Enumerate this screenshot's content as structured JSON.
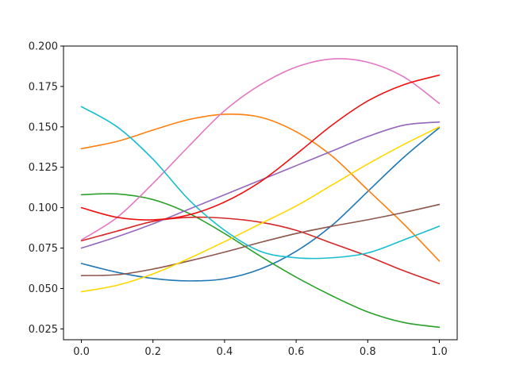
{
  "chart_data": {
    "type": "line",
    "title": "",
    "xlabel": "",
    "ylabel": "",
    "xlim": [
      -0.05,
      1.05
    ],
    "ylim": [
      0.0183,
      0.2
    ],
    "grid": false,
    "legend": "none",
    "x_ticks": [
      0.0,
      0.2,
      0.4,
      0.6,
      0.8,
      1.0
    ],
    "x_tick_labels": [
      "0.0",
      "0.2",
      "0.4",
      "0.6",
      "0.8",
      "1.0"
    ],
    "y_ticks": [
      0.025,
      0.05,
      0.075,
      0.1,
      0.125,
      0.15,
      0.175,
      0.2
    ],
    "y_tick_labels": [
      "0.025",
      "0.050",
      "0.075",
      "0.100",
      "0.125",
      "0.150",
      "0.175",
      "0.200"
    ],
    "x": [
      0.0,
      0.1,
      0.2,
      0.3,
      0.4,
      0.5,
      0.6,
      0.7,
      0.8,
      0.9,
      1.0
    ],
    "series": [
      {
        "color": "#1f77b4",
        "values": [
          0.0655,
          0.06,
          0.0562,
          0.0547,
          0.056,
          0.062,
          0.073,
          0.089,
          0.11,
          0.131,
          0.1495
        ]
      },
      {
        "color": "#ff7f0e",
        "values": [
          0.1365,
          0.141,
          0.148,
          0.1545,
          0.1578,
          0.156,
          0.147,
          0.132,
          0.111,
          0.09,
          0.067
        ]
      },
      {
        "color": "#2ca02c",
        "values": [
          0.108,
          0.1085,
          0.105,
          0.0965,
          0.084,
          0.07,
          0.057,
          0.0455,
          0.0355,
          0.029,
          0.026
        ]
      },
      {
        "color": "#d62728",
        "values": [
          0.0795,
          0.0855,
          0.0915,
          0.094,
          0.0935,
          0.091,
          0.086,
          0.078,
          0.07,
          0.061,
          0.053
        ]
      },
      {
        "color": "#9467bd",
        "values": [
          0.075,
          0.082,
          0.09,
          0.099,
          0.108,
          0.117,
          0.126,
          0.135,
          0.144,
          0.151,
          0.153
        ]
      },
      {
        "color": "#8c564b",
        "values": [
          0.058,
          0.0585,
          0.062,
          0.067,
          0.0725,
          0.0785,
          0.084,
          0.0885,
          0.0925,
          0.097,
          0.102
        ]
      },
      {
        "color": "#e377c2",
        "values": [
          0.08,
          0.094,
          0.115,
          0.138,
          0.16,
          0.176,
          0.187,
          0.192,
          0.19,
          0.181,
          0.1645
        ]
      },
      {
        "color": "#ffd700",
        "values": [
          0.048,
          0.052,
          0.059,
          0.0685,
          0.079,
          0.09,
          0.101,
          0.114,
          0.127,
          0.139,
          0.15
        ]
      },
      {
        "color": "#17becf",
        "values": [
          0.1625,
          0.15,
          0.13,
          0.105,
          0.086,
          0.073,
          0.069,
          0.069,
          0.072,
          0.08,
          0.0885
        ]
      },
      {
        "color": "#ee1111",
        "values": [
          0.1,
          0.094,
          0.0925,
          0.0955,
          0.1035,
          0.116,
          0.133,
          0.151,
          0.166,
          0.176,
          0.182
        ]
      }
    ]
  }
}
